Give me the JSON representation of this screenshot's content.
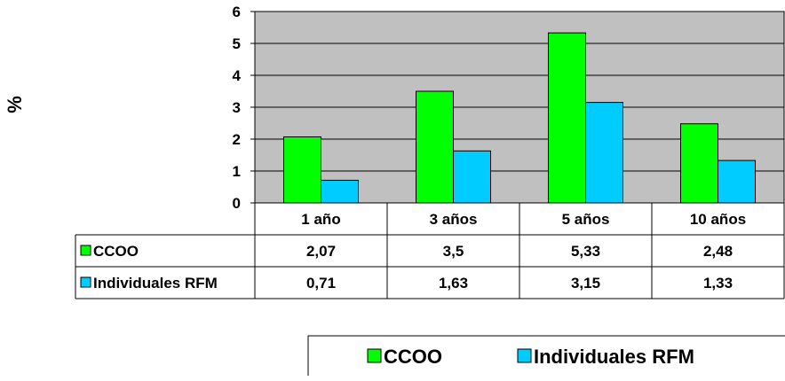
{
  "chart_data": {
    "type": "bar",
    "ylabel": "%",
    "ylim": [
      0,
      6
    ],
    "yticks": [
      0,
      1,
      2,
      3,
      4,
      5,
      6
    ],
    "grid": true,
    "plot_background": "#C0C0C0",
    "categories": [
      "1 año",
      "3 años",
      "5 años",
      "10 años"
    ],
    "series": [
      {
        "name": "CCOO",
        "color": "#00FF00",
        "values": [
          2.07,
          3.5,
          5.33,
          2.48
        ],
        "display": [
          "2,07",
          "3,5",
          "5,33",
          "2,48"
        ]
      },
      {
        "name": "Individuales RFM",
        "color": "#00CCFF",
        "values": [
          0.71,
          1.63,
          3.15,
          1.33
        ],
        "display": [
          "0,71",
          "1,63",
          "3,15",
          "1,33"
        ]
      }
    ],
    "data_table": true,
    "legend": {
      "position": "bottom",
      "entries": [
        "CCOO",
        "Individuales RFM"
      ]
    }
  }
}
